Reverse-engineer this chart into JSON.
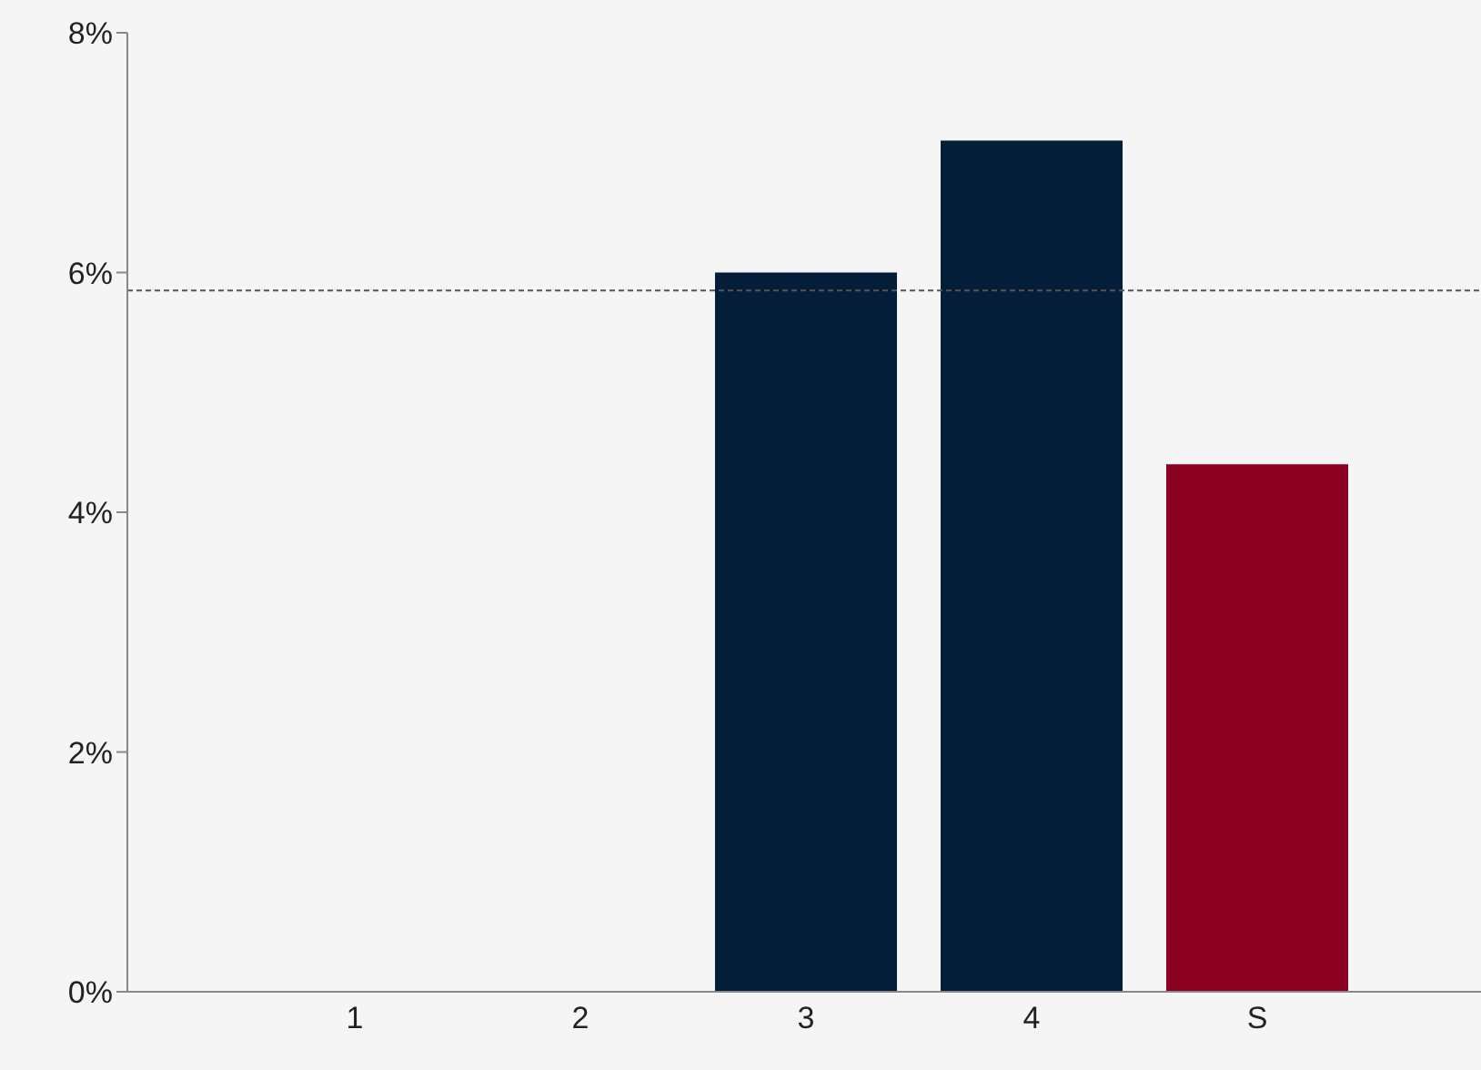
{
  "chart_data": {
    "type": "bar",
    "categories": [
      "1",
      "2",
      "3",
      "4",
      "S"
    ],
    "values": [
      null,
      null,
      6.0,
      7.1,
      4.4
    ],
    "colors": [
      "#041e3a",
      "#041e3a",
      "#041e3a",
      "#041e3a",
      "#8b0020"
    ],
    "ylim": [
      0,
      8
    ],
    "yticks": [
      {
        "value": 0,
        "label": "0%"
      },
      {
        "value": 2,
        "label": "2%"
      },
      {
        "value": 4,
        "label": "4%"
      },
      {
        "value": 6,
        "label": "6%"
      },
      {
        "value": 8,
        "label": "8%"
      }
    ],
    "ref_lines": [
      {
        "axis": "y",
        "value": 5.85,
        "color": "#555555",
        "line_style": "dashed"
      }
    ],
    "grid": false,
    "legend": false
  }
}
